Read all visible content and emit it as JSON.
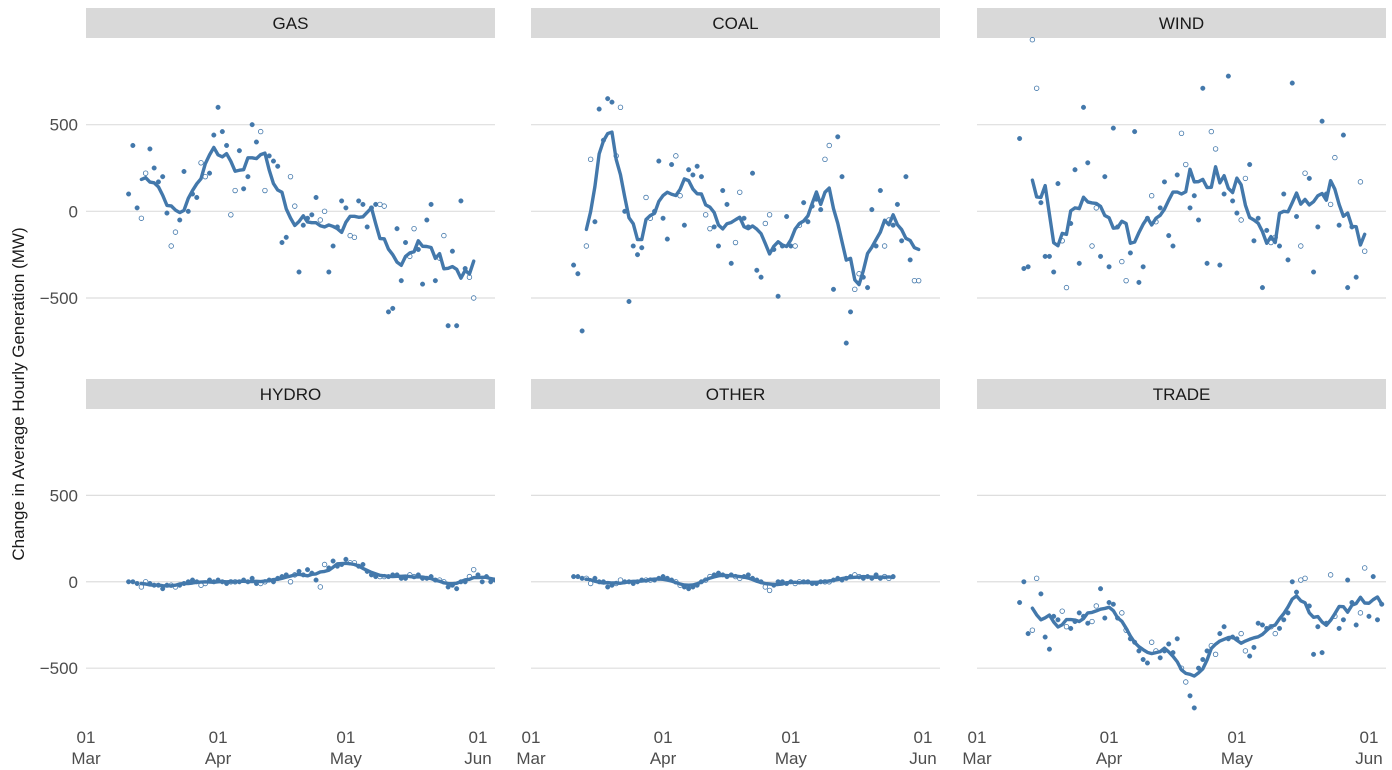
{
  "chart_data": {
    "type": "scatter",
    "title": "",
    "xlabel": "",
    "ylabel": "Change in Average Hourly Generation (MW)",
    "grid": "horizontal major gridlines",
    "legend": "none",
    "xlim": [
      "2020-03-01",
      "2020-06-05"
    ],
    "ylim": [
      -800,
      1000
    ],
    "x_ticks": [
      {
        "date": "2020-03-01",
        "day": "01",
        "month": "Mar"
      },
      {
        "date": "2020-04-01",
        "day": "01",
        "month": "Apr"
      },
      {
        "date": "2020-05-01",
        "day": "01",
        "month": "May"
      },
      {
        "date": "2020-06-01",
        "day": "01",
        "month": "Jun"
      }
    ],
    "y_ticks": [
      500,
      0,
      -500
    ],
    "y_tick_labels": [
      "500",
      "0",
      "−500"
    ],
    "colors": {
      "series": "#4378ab",
      "strip": "#d9d9d9",
      "grid": "#dedede"
    },
    "markers": {
      "filled": "weekday",
      "open": "weekend or holiday"
    },
    "panels": [
      {
        "name": "GAS",
        "points_start": "2020-03-11",
        "points": [
          100,
          380,
          20,
          -40,
          220,
          360,
          250,
          170,
          200,
          -10,
          -200,
          -120,
          -50,
          230,
          0,
          100,
          80,
          280,
          200,
          220,
          440,
          600,
          460,
          380,
          -20,
          120,
          350,
          130,
          200,
          500,
          400,
          460,
          120,
          320,
          290,
          260,
          -180,
          -150,
          200,
          30,
          -350,
          -80,
          -40,
          -20,
          80,
          -50,
          0,
          -350,
          -200,
          -90,
          60,
          20,
          -140,
          -150,
          60,
          40,
          -90,
          20,
          40,
          40,
          30,
          -580,
          -560,
          -100,
          -400,
          -180,
          -260,
          -100,
          -220,
          -420,
          -50,
          40,
          -400,
          -270,
          -140,
          -660,
          -230,
          -660,
          60,
          -330,
          -380,
          -500
        ]
      },
      {
        "name": "COAL",
        "points_start": "2020-03-11",
        "points": [
          -310,
          -360,
          -690,
          -200,
          300,
          -60,
          590,
          410,
          650,
          630,
          320,
          600,
          0,
          -520,
          -200,
          -250,
          -210,
          80,
          -40,
          0,
          290,
          -40,
          -160,
          270,
          320,
          90,
          -80,
          240,
          210,
          260,
          200,
          -20,
          -100,
          -90,
          -200,
          120,
          40,
          -300,
          -180,
          110,
          -40,
          -90,
          220,
          -340,
          -380,
          -70,
          -20,
          -220,
          -490,
          -200,
          -30,
          -200,
          -200,
          -80,
          50,
          -60,
          30,
          70,
          10,
          300,
          380,
          -450,
          430,
          200,
          -760,
          -580,
          -450,
          -360,
          -380,
          -440,
          10,
          -200,
          120,
          -200,
          -50,
          -80,
          40,
          -170,
          200,
          -280,
          -400,
          -400
        ]
      },
      {
        "name": "WIND",
        "points_start": "2020-03-11",
        "points": [
          420,
          -330,
          -320,
          990,
          710,
          50,
          -260,
          -260,
          -350,
          160,
          -170,
          -440,
          -70,
          240,
          -300,
          600,
          280,
          -200,
          20,
          -260,
          200,
          -320,
          480,
          -90,
          -290,
          -400,
          -240,
          460,
          -410,
          -320,
          -40,
          90,
          -60,
          20,
          170,
          -140,
          -200,
          210,
          450,
          270,
          20,
          90,
          -50,
          710,
          -300,
          460,
          360,
          -310,
          100,
          780,
          60,
          -10,
          -50,
          190,
          270,
          -170,
          -40,
          -440,
          -110,
          -180,
          -150,
          -200,
          100,
          -280,
          740,
          -30,
          -200,
          220,
          190,
          -350,
          -90,
          520,
          100,
          40,
          310,
          -80,
          440,
          -440,
          -90,
          -380,
          170,
          -230
        ]
      },
      {
        "name": "HYDRO",
        "points_start": "2020-03-11",
        "points": [
          0,
          0,
          -10,
          -30,
          0,
          -10,
          -20,
          -20,
          -40,
          -20,
          -20,
          -30,
          -20,
          -10,
          0,
          10,
          0,
          -20,
          -10,
          10,
          0,
          10,
          0,
          -10,
          0,
          0,
          0,
          10,
          0,
          20,
          -10,
          -10,
          0,
          10,
          0,
          20,
          30,
          40,
          0,
          40,
          60,
          40,
          70,
          50,
          10,
          -30,
          100,
          80,
          120,
          90,
          100,
          130,
          110,
          110,
          90,
          100,
          60,
          40,
          30,
          30,
          30,
          30,
          40,
          40,
          20,
          20,
          40,
          30,
          40,
          20,
          20,
          30,
          10,
          10,
          0,
          -30,
          -20,
          -40,
          0,
          0,
          30,
          70,
          40,
          0,
          30,
          0,
          10,
          30
        ]
      },
      {
        "name": "OTHER",
        "points_start": "2020-03-11",
        "points": [
          30,
          30,
          20,
          20,
          -10,
          20,
          0,
          0,
          -30,
          -20,
          -10,
          10,
          0,
          0,
          -10,
          0,
          10,
          10,
          10,
          10,
          20,
          30,
          20,
          10,
          0,
          -20,
          -30,
          -40,
          -30,
          -20,
          0,
          10,
          30,
          40,
          50,
          40,
          30,
          40,
          30,
          20,
          30,
          40,
          20,
          10,
          0,
          -30,
          -50,
          -20,
          0,
          0,
          -10,
          0,
          -10,
          0,
          0,
          0,
          -10,
          -10,
          0,
          0,
          0,
          10,
          20,
          10,
          20,
          30,
          40,
          30,
          20,
          30,
          20,
          40,
          20,
          30,
          20,
          30
        ]
      },
      {
        "name": "TRADE",
        "points_start": "2020-03-11",
        "points": [
          -120,
          0,
          -300,
          -280,
          20,
          -70,
          -320,
          -390,
          -200,
          -220,
          -170,
          -260,
          -270,
          -230,
          -180,
          -200,
          -240,
          -230,
          -140,
          -40,
          -210,
          -120,
          -130,
          -210,
          -180,
          -280,
          -330,
          -350,
          -400,
          -450,
          -470,
          -350,
          -400,
          -440,
          -400,
          -360,
          -410,
          -330,
          -500,
          -580,
          -660,
          -730,
          -500,
          -450,
          -400,
          -370,
          -420,
          -300,
          -260,
          -330,
          -320,
          -330,
          -300,
          -400,
          -430,
          -380,
          -240,
          -250,
          -270,
          -260,
          -300,
          -270,
          -220,
          -180,
          0,
          -60,
          10,
          20,
          -140,
          -420,
          -260,
          -410,
          -240,
          40,
          -200,
          -270,
          -220,
          10,
          -120,
          -250,
          -180,
          80,
          -200,
          30,
          -220,
          -130
        ]
      }
    ]
  }
}
